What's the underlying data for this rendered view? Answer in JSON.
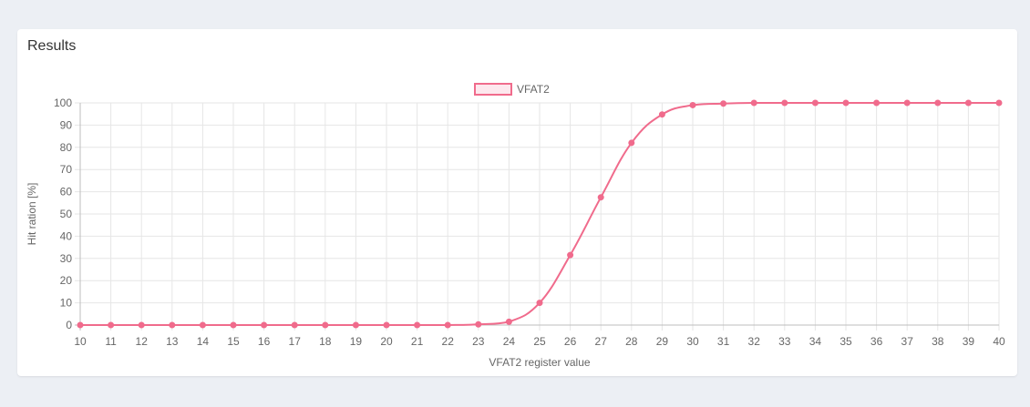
{
  "card": {
    "title": "Results"
  },
  "chart_data": {
    "type": "line",
    "x": [
      10,
      11,
      12,
      13,
      14,
      15,
      16,
      17,
      18,
      19,
      20,
      21,
      22,
      23,
      24,
      25,
      26,
      27,
      28,
      29,
      30,
      31,
      32,
      33,
      34,
      35,
      36,
      37,
      38,
      39,
      40
    ],
    "series": [
      {
        "name": "VFAT2",
        "color": "#f06b8c",
        "values": [
          0,
          0,
          0,
          0,
          0,
          0,
          0,
          0,
          0,
          0,
          0,
          0,
          0,
          0.3,
          1.5,
          10,
          31.5,
          57.5,
          82,
          94.8,
          99,
          99.7,
          100,
          100,
          100,
          100,
          100,
          100,
          100,
          100,
          100
        ]
      }
    ],
    "xlabel": "VFAT2 register value",
    "ylabel": "Hit ration [%]",
    "ylim": [
      0,
      100
    ],
    "yticks": [
      0,
      10,
      20,
      30,
      40,
      50,
      60,
      70,
      80,
      90,
      100
    ],
    "legend": "top-center",
    "grid": true
  }
}
